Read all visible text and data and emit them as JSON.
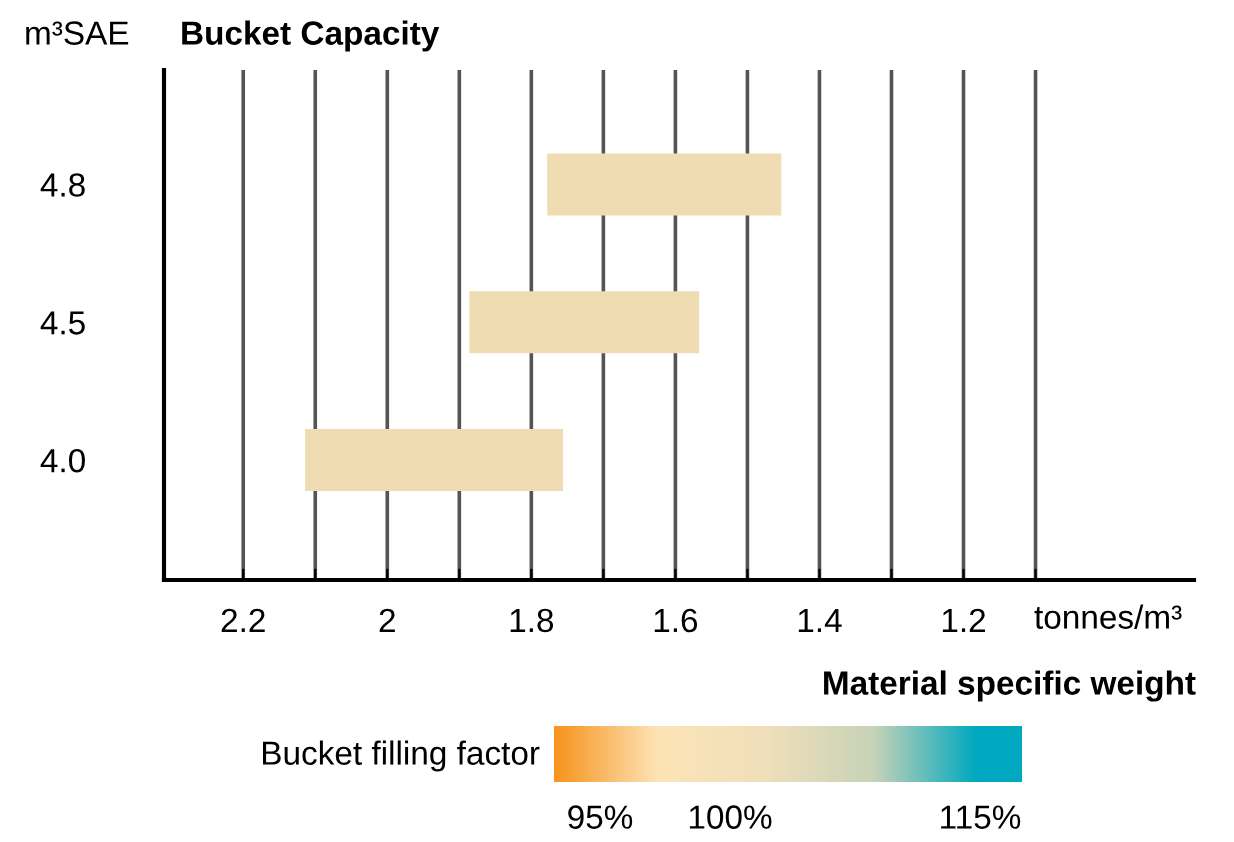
{
  "chart_data": {
    "type": "bar",
    "orientation": "horizontal",
    "title": "Bucket Capacity",
    "ylabel": "m³SAE",
    "xlabel": "tonnes/m³",
    "categories": [
      "4.8",
      "4.5",
      "4.0"
    ],
    "series": [
      {
        "color": "#efdcb2",
        "base": [
          1.778,
          1.886,
          2.114
        ],
        "values": [
          -0.325,
          -0.319,
          -0.358
        ]
      }
    ],
    "xlim": [
      2.31,
      0.88
    ],
    "xticks": [
      2.2,
      {
        "value": 2.1,
        "label": null
      },
      2,
      {
        "value": 1.9,
        "label": null
      },
      1.8,
      {
        "value": 1.7,
        "label": null
      },
      1.6,
      {
        "value": 1.5,
        "label": null
      },
      1.4,
      {
        "value": 1.3,
        "label": null
      },
      1.2,
      {
        "value": 1.1,
        "label": null
      }
    ],
    "grid": "x",
    "annotations": [
      "Material specific weight",
      "Bucket filling factor",
      "95%",
      "100%",
      "115%"
    ]
  }
}
